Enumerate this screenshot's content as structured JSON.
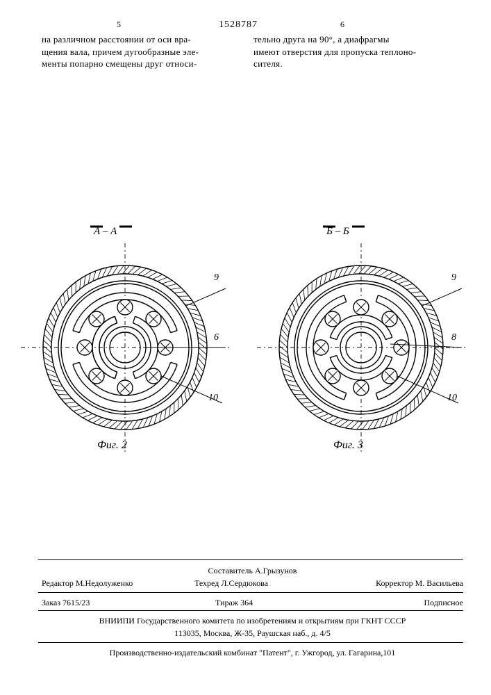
{
  "doc_number": "1528787",
  "page_left_num": "5",
  "page_right_num": "6",
  "text_left": "на различном расстоянии от оси вра-\nщения вала, причем дугообразные эле-\nменты попарно смещены друг относи-",
  "text_right": "тельно друга на 90°, а диафрагмы\nимеют отверстия для пропуска теплоно-\nсителя.",
  "section_a": "А – А",
  "section_b": "Б – Б",
  "fig2_label": "Фиг. 2",
  "fig3_label": "Фиг. 3",
  "callouts_a": {
    "r9": "9",
    "r6": "6",
    "r10": "10"
  },
  "callouts_b": {
    "r9": "9",
    "r8": "8",
    "r10": "10"
  },
  "footer": {
    "compiler": "Составитель А.Грызунов",
    "editor": "Редактор М.Недолуженко",
    "techred": "Техред Л.Сердюкова",
    "corrector": "Корректор М. Васильева",
    "order": "Заказ 7615/23",
    "tirage": "Тираж 364",
    "subscribed": "Подписное",
    "org1": "ВНИИПИ Государственного комитета по изобретениям и открытиям при ГКНТ СССР",
    "addr1": "113035, Москва, Ж-35, Раушская наб., д. 4/5",
    "org2": "Производственно-издательский комбинат \"Патент\", г. Ужгород, ул. Гагарина,101"
  },
  "diagram_style": {
    "outer_hatch_ring": {
      "r_out": 118,
      "r_in": 106,
      "stroke": "#000000"
    },
    "inner_plain_ring": {
      "r_out": 96,
      "r_in": 92
    },
    "center_ring": {
      "r_out": 30,
      "r_in": 22
    },
    "hole_r": 11,
    "hole_orbit_r": 58,
    "arc_inner_r": 42,
    "arc_outer_r": 74,
    "arc_width": 10,
    "background": "#ffffff",
    "stroke": "#000000",
    "stroke_width": 1.4,
    "centerline_dash": "6 4 2 4"
  }
}
